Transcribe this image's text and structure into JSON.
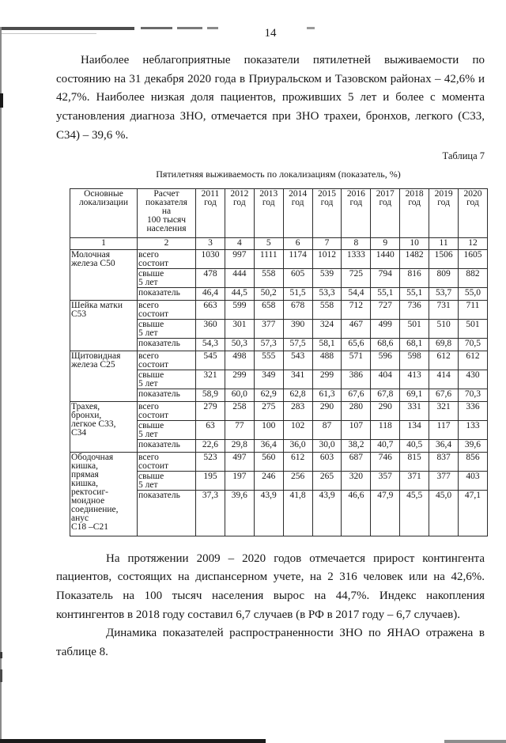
{
  "page": {
    "number": "14"
  },
  "paragraphs": {
    "p1": "Наиболее неблагоприятные показатели пятилетней выживаемости по состоянию на 31 декабря 2020 года в Приуральском и Тазовском районах – 42,6% и 42,7%. Наиболее низкая доля пациентов, проживших 5 лет и более с момента установления диагноза ЗНО, отмечается при ЗНО трахеи, бронхов, легкого (С33, С34) – 39,6 %.",
    "p2": "На протяжении 2009 – 2020 годов отмечается прирост контингента пациентов, состоящих на диспансерном учете, на 2 316 человек или на 42,6%. Показатель на 100 тысяч населения вырос на 44,7%. Индекс накопления контингентов в 2018 году составил 6,7 случаев (в РФ в 2017 году – 6,7 случаев).",
    "p3": "Динамика показателей распространенности ЗНО по ЯНАО отражена в таблице 8."
  },
  "table": {
    "caption_right": "Таблица 7",
    "title": "Пятилетняя выживаемость по локализациям (показатель, %)",
    "header": {
      "col1": "Основные\nлокализации",
      "col2": "Расчет\nпоказателя\nна\n100 тысяч\nнаселения",
      "years": [
        "2011\nгод",
        "2012\nгод",
        "2013\nгод",
        "2014\nгод",
        "2015\nгод",
        "2016\nгод",
        "2017\nгод",
        "2018\nгод",
        "2019\nгод",
        "2020\nгод"
      ]
    },
    "number_row": [
      "1",
      "2",
      "3",
      "4",
      "5",
      "6",
      "7",
      "8",
      "9",
      "10",
      "11",
      "12"
    ],
    "row_labels": {
      "total": "всего\nсостоит",
      "over5": "свыше\n5 лет",
      "rate": "показатель"
    },
    "groups": [
      {
        "label": "Молочная\nжелеза С50",
        "total": [
          "1030",
          "997",
          "1111",
          "1174",
          "1012",
          "1333",
          "1440",
          "1482",
          "1506",
          "1605"
        ],
        "over5": [
          "478",
          "444",
          "558",
          "605",
          "539",
          "725",
          "794",
          "816",
          "809",
          "882"
        ],
        "rate": [
          "46,4",
          "44,5",
          "50,2",
          "51,5",
          "53,3",
          "54,4",
          "55,1",
          "55,1",
          "53,7",
          "55,0"
        ]
      },
      {
        "label": "Шейка матки\nС53",
        "total": [
          "663",
          "599",
          "658",
          "678",
          "558",
          "712",
          "727",
          "736",
          "731",
          "711"
        ],
        "over5": [
          "360",
          "301",
          "377",
          "390",
          "324",
          "467",
          "499",
          "501",
          "510",
          "501"
        ],
        "rate": [
          "54,3",
          "50,3",
          "57,3",
          "57,5",
          "58,1",
          "65,6",
          "68,6",
          "68,1",
          "69,8",
          "70,5"
        ]
      },
      {
        "label": "Щитовидная\nжелеза С25",
        "total": [
          "545",
          "498",
          "555",
          "543",
          "488",
          "571",
          "596",
          "598",
          "612",
          "612"
        ],
        "over5": [
          "321",
          "299",
          "349",
          "341",
          "299",
          "386",
          "404",
          "413",
          "414",
          "430"
        ],
        "rate": [
          "58,9",
          "60,0",
          "62,9",
          "62,8",
          "61,3",
          "67,6",
          "67,8",
          "69,1",
          "67,6",
          "70,3"
        ]
      },
      {
        "label": "Трахея,\nбронхи,\nлегкое С33,\nС34",
        "total": [
          "279",
          "258",
          "275",
          "283",
          "290",
          "280",
          "290",
          "331",
          "321",
          "336"
        ],
        "over5": [
          "63",
          "77",
          "100",
          "102",
          "87",
          "107",
          "118",
          "134",
          "117",
          "133"
        ],
        "rate": [
          "22,6",
          "29,8",
          "36,4",
          "36,0",
          "30,0",
          "38,2",
          "40,7",
          "40,5",
          "36,4",
          "39,6"
        ]
      },
      {
        "label": "Ободочная\nкишка,\nпрямая\nкишка,\nректосиг-\nмоидное\nсоединение,\nанус\nС18 –С21",
        "total": [
          "523",
          "497",
          "560",
          "612",
          "603",
          "687",
          "746",
          "815",
          "837",
          "856"
        ],
        "over5": [
          "195",
          "197",
          "246",
          "256",
          "265",
          "320",
          "357",
          "371",
          "377",
          "403"
        ],
        "rate": [
          "37,3",
          "39,6",
          "43,9",
          "41,8",
          "43,9",
          "46,6",
          "47,9",
          "45,5",
          "45,0",
          "47,1"
        ]
      }
    ]
  }
}
